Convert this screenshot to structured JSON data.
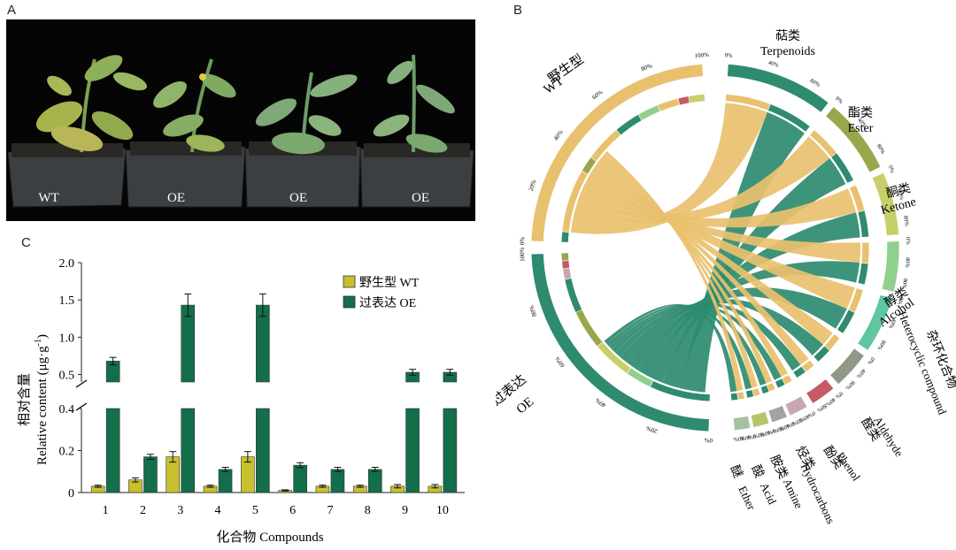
{
  "panels": {
    "a": "A",
    "b": "B",
    "c": "C"
  },
  "photo_labels": [
    "WT",
    "OE",
    "OE",
    "OE"
  ],
  "colors": {
    "wt": "#c8c02e",
    "oe": "#136e4a",
    "chord_wt": "#e9c06e",
    "chord_oe": "#2e8b6f",
    "background_photo": "#050505"
  },
  "chart_data": {
    "type": "bar",
    "xlabel": "化合物 Compounds",
    "ylabel_cn": "相对含量",
    "ylabel_en": "Relative content (μg·g",
    "ylabel_sup": "-1",
    "ylabel_end": ")",
    "categories": [
      "1",
      "2",
      "3",
      "4",
      "5",
      "6",
      "7",
      "8",
      "9",
      "10"
    ],
    "series": [
      {
        "name": "野生型 WT",
        "values": [
          0.03,
          0.06,
          0.17,
          0.03,
          0.17,
          0.01,
          0.03,
          0.03,
          0.03,
          0.03
        ],
        "errors": [
          0.005,
          0.01,
          0.025,
          0.005,
          0.025,
          0.003,
          0.005,
          0.005,
          0.008,
          0.008
        ]
      },
      {
        "name": "过表达 OE",
        "values": [
          0.68,
          0.17,
          1.43,
          0.11,
          1.43,
          0.13,
          0.11,
          0.11,
          0.53,
          0.53
        ],
        "errors": [
          0.05,
          0.012,
          0.15,
          0.01,
          0.15,
          0.012,
          0.01,
          0.01,
          0.04,
          0.04
        ]
      }
    ],
    "y_lower_range": [
      0,
      0.4
    ],
    "y_upper_range": [
      0.4,
      2.0
    ],
    "y_lower_ticks": [
      "0",
      "0.2",
      "0.4"
    ],
    "y_upper_ticks": [
      "0.5",
      "1.0",
      "1.5",
      "2.0"
    ],
    "axis_break": true,
    "legend_position": "top-right"
  },
  "chord": {
    "groups": [
      {
        "cn": "野生型",
        "en": "WT"
      },
      {
        "cn": "过表达",
        "en": "OE"
      }
    ],
    "categories": [
      {
        "cn": "萜类",
        "en": "Terpenoids",
        "color": "#2e8b6f"
      },
      {
        "cn": "酯类",
        "en": "Ester",
        "color": "#9aa64a"
      },
      {
        "cn": "酮类",
        "en": "Ketone",
        "color": "#c6cf6a"
      },
      {
        "cn": "醇类",
        "en": "Alcohol",
        "color": "#8fd08f"
      },
      {
        "cn": "杂环化合物",
        "en": "Heterocyclic compound",
        "color": "#5fc6a0"
      },
      {
        "cn": "醛类",
        "en": "Aldehyde",
        "color": "#8e9a86"
      },
      {
        "cn": "酚类",
        "en": "Phenol",
        "color": "#c75a66"
      },
      {
        "cn": "烃类",
        "en": "Hydrocarbons",
        "color": "#c7a8b0"
      },
      {
        "cn": "胺类",
        "en": "Amine",
        "color": "#9fa3a1"
      },
      {
        "cn": "酸",
        "en": "Acid",
        "color": "#b8c46a"
      },
      {
        "cn": "醚",
        "en": "Ether",
        "color": "#a6c0a0"
      }
    ],
    "pct_labels": [
      "0%",
      "20%",
      "40%",
      "60%",
      "80%",
      "100%"
    ]
  }
}
